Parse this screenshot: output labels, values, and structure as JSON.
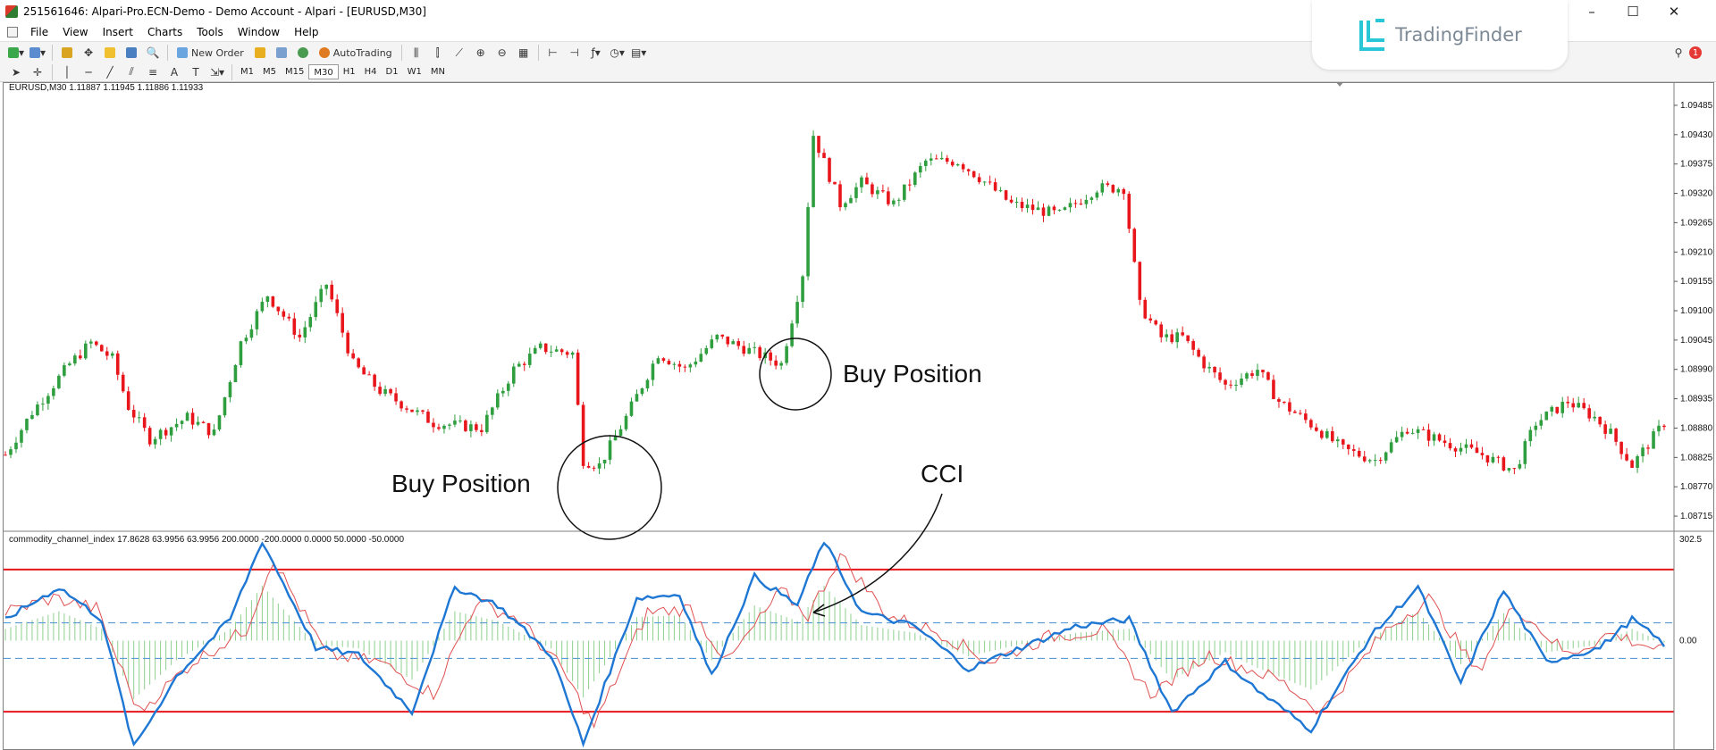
{
  "window": {
    "title": "251561646: Alpari-Pro.ECN-Demo - Demo Account - Alpari - [EURUSD,M30]",
    "controls": [
      "–",
      "☐",
      "✕"
    ]
  },
  "menu": [
    "File",
    "View",
    "Insert",
    "Charts",
    "Tools",
    "Window",
    "Help"
  ],
  "toolbar": {
    "new_order_label": "New Order",
    "autotrading_label": "AutoTrading",
    "timeframes": [
      "M1",
      "M5",
      "M15",
      "M30",
      "H1",
      "H4",
      "D1",
      "W1",
      "MN"
    ],
    "active_timeframe": "M30",
    "notification_count": "1"
  },
  "logo": {
    "text": "TradingFinder"
  },
  "chart_data": [
    {
      "type": "candlestick",
      "info_label": "EURUSD,M30  1.11887 1.11945 1.11886 1.11933",
      "price_ticks": [
        "1.09485",
        "1.09430",
        "1.09375",
        "1.09320",
        "1.09265",
        "1.09210",
        "1.09155",
        "1.09100",
        "1.09045",
        "1.08990",
        "1.08935",
        "1.08880",
        "1.08825",
        "1.08770",
        "1.08715"
      ],
      "ylim": [
        1.0869,
        1.0951
      ],
      "up_color": "#2e9e3e",
      "down_color": "#e8151b",
      "close_path": [
        [
          0,
          1.0883
        ],
        [
          5,
          1.0891
        ],
        [
          12,
          1.09
        ],
        [
          16,
          1.0904
        ],
        [
          20,
          1.0901
        ],
        [
          23,
          1.0892
        ],
        [
          27,
          1.0886
        ],
        [
          34,
          1.089
        ],
        [
          39,
          1.0887
        ],
        [
          44,
          1.0904
        ],
        [
          49,
          1.0913
        ],
        [
          55,
          1.0905
        ],
        [
          60,
          1.0915
        ],
        [
          65,
          1.09
        ],
        [
          70,
          1.0895
        ],
        [
          80,
          1.0889
        ],
        [
          89,
          1.0888
        ],
        [
          95,
          1.0899
        ],
        [
          100,
          1.0903
        ],
        [
          106,
          1.0902
        ],
        [
          108,
          1.0882
        ],
        [
          111,
          1.0881
        ],
        [
          116,
          1.089
        ],
        [
          122,
          1.0902
        ],
        [
          127,
          1.0899
        ],
        [
          133,
          1.0905
        ],
        [
          138,
          1.0903
        ],
        [
          145,
          1.09
        ],
        [
          149,
          1.0917
        ],
        [
          151,
          1.0943
        ],
        [
          156,
          1.093
        ],
        [
          160,
          1.0934
        ],
        [
          166,
          1.093
        ],
        [
          172,
          1.0938
        ],
        [
          178,
          1.0938
        ],
        [
          182,
          1.0935
        ],
        [
          188,
          1.093
        ],
        [
          197,
          1.0928
        ],
        [
          204,
          1.0933
        ],
        [
          209,
          1.0933
        ],
        [
          212,
          1.0911
        ],
        [
          216,
          1.0905
        ],
        [
          220,
          1.0905
        ],
        [
          224,
          1.09
        ],
        [
          228,
          1.0896
        ],
        [
          234,
          1.0899
        ],
        [
          238,
          1.0893
        ],
        [
          245,
          1.0888
        ],
        [
          250,
          1.0884
        ],
        [
          256,
          1.0882
        ],
        [
          262,
          1.0888
        ],
        [
          270,
          1.0885
        ],
        [
          276,
          1.0883
        ],
        [
          282,
          1.088
        ],
        [
          286,
          1.0889
        ],
        [
          292,
          1.0893
        ],
        [
          297,
          1.089
        ],
        [
          300,
          1.0887
        ],
        [
          304,
          1.0881
        ],
        [
          310,
          1.0889
        ]
      ],
      "annotations": [
        "Buy Position",
        "Buy Position",
        "CCI"
      ]
    },
    {
      "type": "line",
      "info_label": "commodity_channel_index 17.8628 63.9956 63.9956 200.0000 -200.0000 0.0000 50.0000 -50.0000",
      "scale_top": "302.5",
      "scale_zero": "0.00",
      "ylim": [
        -300,
        302.5
      ],
      "levels": [
        200,
        -200,
        50,
        -50,
        0
      ],
      "level_colors": {
        "outer": "#e8151b",
        "inner": "#5b9bd5",
        "histogram": "#8ecf8e"
      },
      "series": [
        {
          "color": "#1f77d4",
          "path": [
            [
              0,
              60
            ],
            [
              10,
              150
            ],
            [
              18,
              60
            ],
            [
              24,
              -300
            ],
            [
              32,
              -100
            ],
            [
              42,
              60
            ],
            [
              48,
              280
            ],
            [
              58,
              -20
            ],
            [
              66,
              -40
            ],
            [
              76,
              -200
            ],
            [
              84,
              150
            ],
            [
              92,
              100
            ],
            [
              102,
              -40
            ],
            [
              108,
              -290
            ],
            [
              118,
              120
            ],
            [
              126,
              130
            ],
            [
              132,
              -100
            ],
            [
              140,
              180
            ],
            [
              148,
              100
            ],
            [
              153,
              280
            ],
            [
              160,
              80
            ],
            [
              170,
              40
            ],
            [
              180,
              -80
            ],
            [
              188,
              -30
            ],
            [
              200,
              40
            ],
            [
              210,
              60
            ],
            [
              218,
              -200
            ],
            [
              228,
              -60
            ],
            [
              234,
              -140
            ],
            [
              244,
              -250
            ],
            [
              255,
              10
            ],
            [
              264,
              150
            ],
            [
              272,
              -120
            ],
            [
              280,
              140
            ],
            [
              288,
              -60
            ],
            [
              298,
              -20
            ],
            [
              304,
              60
            ],
            [
              310,
              -10
            ]
          ]
        },
        {
          "color": "#e05050",
          "path": [
            [
              0,
              80
            ],
            [
              9,
              120
            ],
            [
              17,
              90
            ],
            [
              25,
              -200
            ],
            [
              35,
              -60
            ],
            [
              45,
              30
            ],
            [
              50,
              230
            ],
            [
              60,
              -40
            ],
            [
              70,
              -60
            ],
            [
              80,
              -150
            ],
            [
              88,
              110
            ],
            [
              96,
              60
            ],
            [
              104,
              -80
            ],
            [
              110,
              -240
            ],
            [
              120,
              80
            ],
            [
              128,
              90
            ],
            [
              135,
              -60
            ],
            [
              145,
              140
            ],
            [
              150,
              70
            ],
            [
              156,
              240
            ],
            [
              165,
              70
            ],
            [
              175,
              20
            ],
            [
              184,
              -60
            ],
            [
              195,
              10
            ],
            [
              205,
              30
            ],
            [
              214,
              -150
            ],
            [
              225,
              -40
            ],
            [
              238,
              -110
            ],
            [
              246,
              -200
            ],
            [
              258,
              30
            ],
            [
              266,
              120
            ],
            [
              275,
              -90
            ],
            [
              282,
              100
            ],
            [
              292,
              -40
            ],
            [
              300,
              20
            ],
            [
              310,
              -30
            ]
          ]
        }
      ]
    }
  ]
}
